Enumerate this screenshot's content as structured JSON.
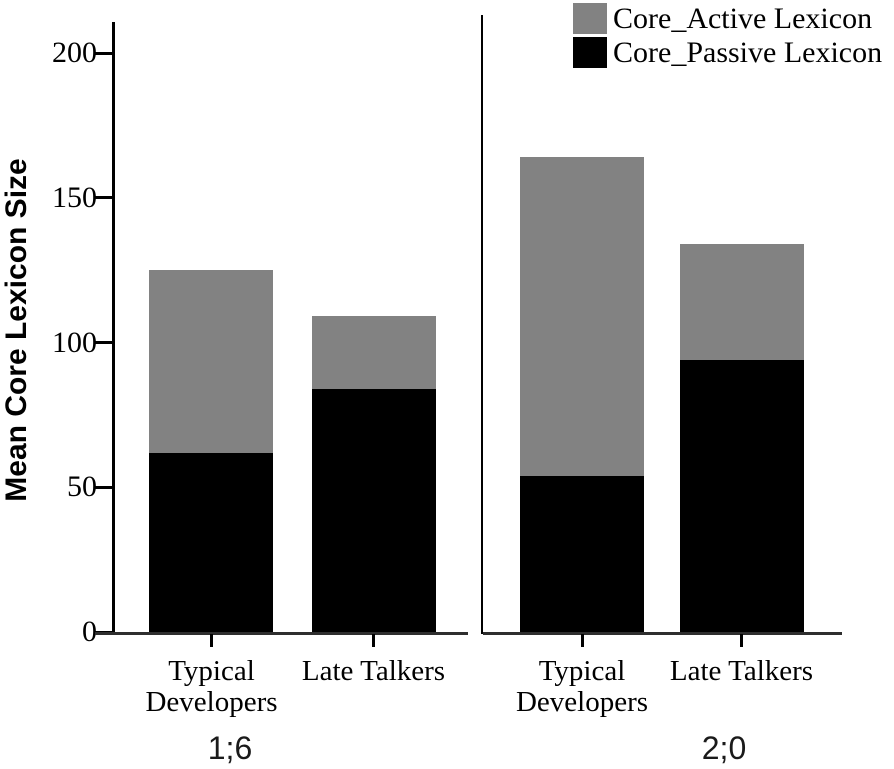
{
  "chart_data": {
    "type": "bar",
    "stacked": true,
    "orientation": "vertical",
    "title": "",
    "ylabel": "Mean Core Lexicon Size",
    "xlabel": "",
    "ylim": [
      0,
      210
    ],
    "yticks": [
      "0",
      "50",
      "100",
      "150",
      "200"
    ],
    "ytick_values": [
      0,
      50,
      100,
      150,
      200
    ],
    "grid": false,
    "legend": {
      "position": "top-right",
      "entries": [
        {
          "label": "Core_Active Lexicon",
          "color": "#828282"
        },
        {
          "label": "Core_Passive Lexicon",
          "color": "#000000"
        }
      ]
    },
    "panels": [
      {
        "label": "1;6",
        "categories": [
          "Typical Developers",
          "Late Talkers"
        ],
        "category_lines": [
          [
            "Typical",
            "Developers"
          ],
          [
            "Late Talkers"
          ]
        ],
        "series": [
          {
            "name": "Core_Passive Lexicon",
            "color": "#000000",
            "values": [
              62,
              84
            ]
          },
          {
            "name": "Core_Active Lexicon",
            "color": "#828282",
            "values": [
              63,
              25
            ]
          }
        ],
        "stacked_totals": [
          125,
          109
        ]
      },
      {
        "label": "2;0",
        "categories": [
          "Typical Developers",
          "Late Talkers"
        ],
        "category_lines": [
          [
            "Typical",
            "Developers"
          ],
          [
            "Late Talkers"
          ]
        ],
        "series": [
          {
            "name": "Core_Passive Lexicon",
            "color": "#000000",
            "values": [
              54,
              94
            ]
          },
          {
            "name": "Core_Active Lexicon",
            "color": "#828282",
            "values": [
              110,
              40
            ]
          }
        ],
        "stacked_totals": [
          164,
          134
        ]
      }
    ]
  }
}
